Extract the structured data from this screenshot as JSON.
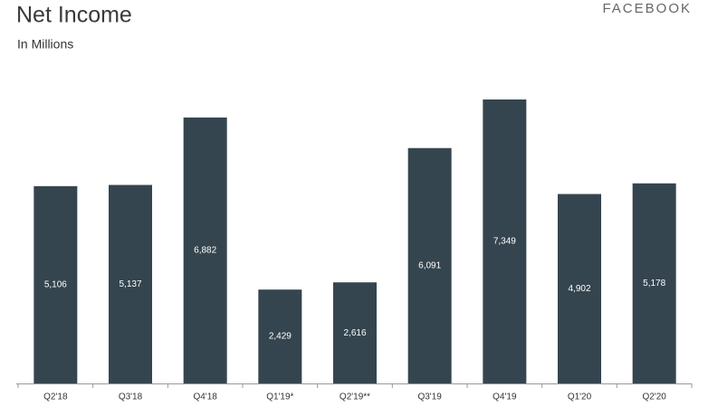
{
  "chart_data": {
    "type": "bar",
    "title": "Net Income",
    "subtitle": "In Millions",
    "brand": "FACEBOOK",
    "categories": [
      "Q2'18",
      "Q3'18",
      "Q4'18",
      "Q1'19*",
      "Q2'19**",
      "Q3'19",
      "Q4'19",
      "Q1'20",
      "Q2'20"
    ],
    "values": [
      5106,
      5137,
      6882,
      2429,
      2616,
      6091,
      7349,
      4902,
      5178
    ],
    "value_labels": [
      "5,106",
      "5,137",
      "6,882",
      "2,429",
      "2,616",
      "6,091",
      "7,349",
      "4,902",
      "5,178"
    ],
    "color": "#35454f"
  }
}
